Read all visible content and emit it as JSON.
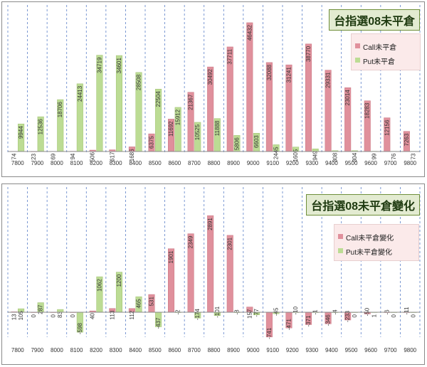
{
  "colors": {
    "call": "#e0909c",
    "put": "#bcdc94",
    "grid": "#5b7fc8",
    "axis": "#888888",
    "bar_stroke_call": "#c97682",
    "bar_stroke_put": "#9fc06f"
  },
  "chart_data": [
    {
      "type": "bar",
      "title": "台指選08未平倉",
      "categories": [
        "7800",
        "7900",
        "8000",
        "8100",
        "8200",
        "8300",
        "8400",
        "8500",
        "8600",
        "8700",
        "8800",
        "8900",
        "9000",
        "9100",
        "9200",
        "9300",
        "9400",
        "9500",
        "9600",
        "9700",
        "9800"
      ],
      "series": [
        {
          "name": "Call未平倉",
          "values": [
            74,
            23,
            69,
            94,
            506,
            617,
            1686,
            6375,
            11692,
            21367,
            30492,
            37711,
            46432,
            32088,
            31241,
            38770,
            29331,
            23014,
            18283,
            12156,
            7263
          ]
        },
        {
          "name": "Put未平倉",
          "values": [
            9944,
            12536,
            18706,
            24413,
            34719,
            34601,
            28508,
            22504,
            15912,
            10525,
            11888,
            5806,
            6603,
            2445,
            1605,
            949,
            308,
            304,
            99,
            76,
            73
          ]
        }
      ],
      "ylim": [
        0,
        48000
      ],
      "grid": "vertical dashed",
      "legend_position": "top-right"
    },
    {
      "type": "bar",
      "title": "台指選08未平倉變化",
      "categories": [
        "7800",
        "7900",
        "8000",
        "8100",
        "8200",
        "8300",
        "8400",
        "8500",
        "8600",
        "8700",
        "8800",
        "8900",
        "9000",
        "9100",
        "9200",
        "9300",
        "9400",
        "9500",
        "9600",
        "9700",
        "9800"
      ],
      "series": [
        {
          "name": "Call未平倉變化",
          "values": [
            13,
            0,
            0,
            0,
            40,
            113,
            112,
            531,
            1901,
            2349,
            2891,
            2301,
            157,
            -741,
            -471,
            -371,
            -346,
            -233,
            -50,
            -6,
            -11
          ]
        },
        {
          "name": "Put未平倉變化",
          "values": [
            105,
            287,
            83,
            -598,
            1062,
            1200,
            465,
            -437,
            -2,
            -174,
            -101,
            -8,
            -77,
            -45,
            -10,
            -1,
            -4,
            0,
            1,
            0,
            0
          ]
        }
      ],
      "ylim": [
        -900,
        3100
      ],
      "grid": "vertical dashed",
      "legend_position": "top-right"
    }
  ]
}
